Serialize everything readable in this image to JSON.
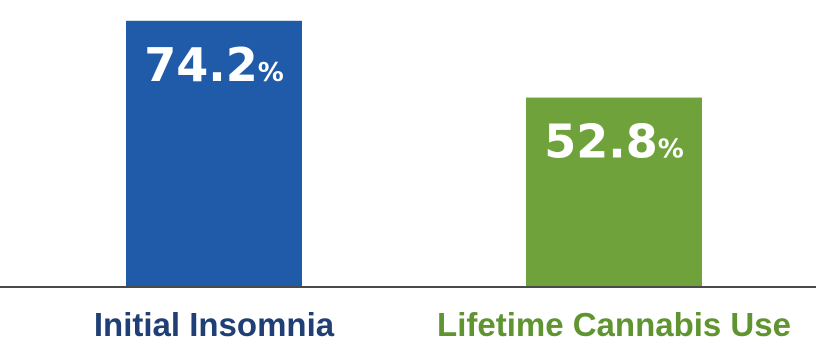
{
  "chart_data": {
    "type": "bar",
    "title": "",
    "xlabel": "",
    "ylabel": "",
    "ylim": [
      0,
      80
    ],
    "grid": false,
    "categories": [
      "Initial Insomnia",
      "Lifetime Cannabis Use"
    ],
    "values": [
      74.2,
      52.8
    ],
    "value_labels": [
      "74.2",
      "52.8"
    ],
    "unit_label": "%",
    "colors": [
      "#1f5ba8",
      "#6fa23a"
    ],
    "category_label_colors": [
      "#1f3f75",
      "#5f9430"
    ]
  }
}
